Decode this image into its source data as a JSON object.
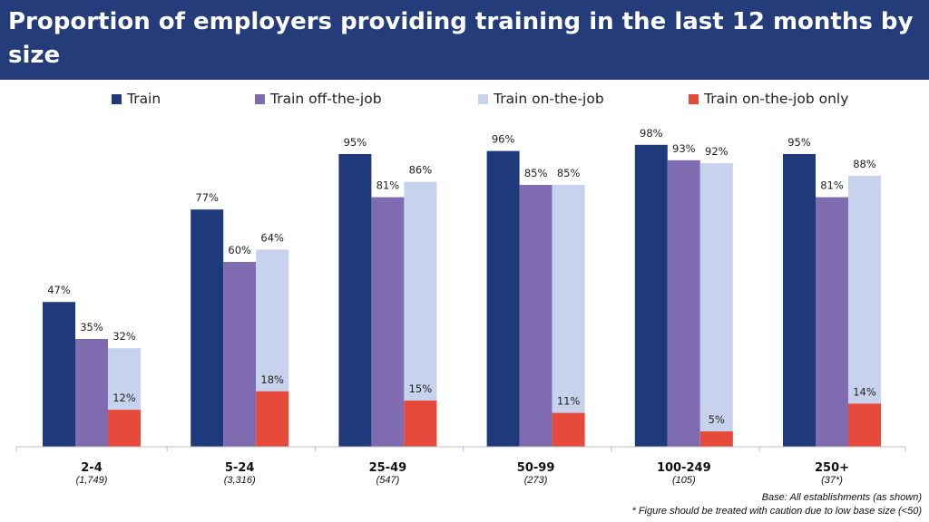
{
  "title": "Proportion of employers providing training in the last 12 months by size",
  "footnotes": {
    "base": "Base: All establishments (as shown)",
    "caution": "* Figure should be treated with caution due to low base size (<50)"
  },
  "colors": {
    "header_bg": "#243c7a",
    "train": "#1f3a7a",
    "off_the_job": "#7f6cb0",
    "on_the_job": "#c7d3ed",
    "on_the_job_only": "#e64a3b"
  },
  "chart_data": {
    "type": "bar",
    "categories": [
      "2-4",
      "5-24",
      "25-49",
      "50-99",
      "100-249",
      "250+"
    ],
    "category_bases": [
      "(1,749)",
      "(3,316)",
      "(547)",
      "(273)",
      "(105)",
      "(37*)"
    ],
    "unit": "%",
    "ylim": [
      0,
      100
    ],
    "grid": false,
    "legend_position": "top",
    "series": [
      {
        "name": "Train",
        "color": "#1f3a7a",
        "values": [
          47,
          77,
          95,
          96,
          98,
          95
        ]
      },
      {
        "name": "Train off-the-job",
        "color": "#7f6cb0",
        "values": [
          35,
          60,
          81,
          85,
          93,
          81
        ]
      },
      {
        "name": "Train on-the-job",
        "color": "#c7d3ed",
        "values": [
          32,
          64,
          86,
          85,
          92,
          88
        ]
      },
      {
        "name": "Train on-the-job only",
        "color": "#e64a3b",
        "values": [
          12,
          18,
          15,
          11,
          5,
          14
        ]
      }
    ]
  }
}
